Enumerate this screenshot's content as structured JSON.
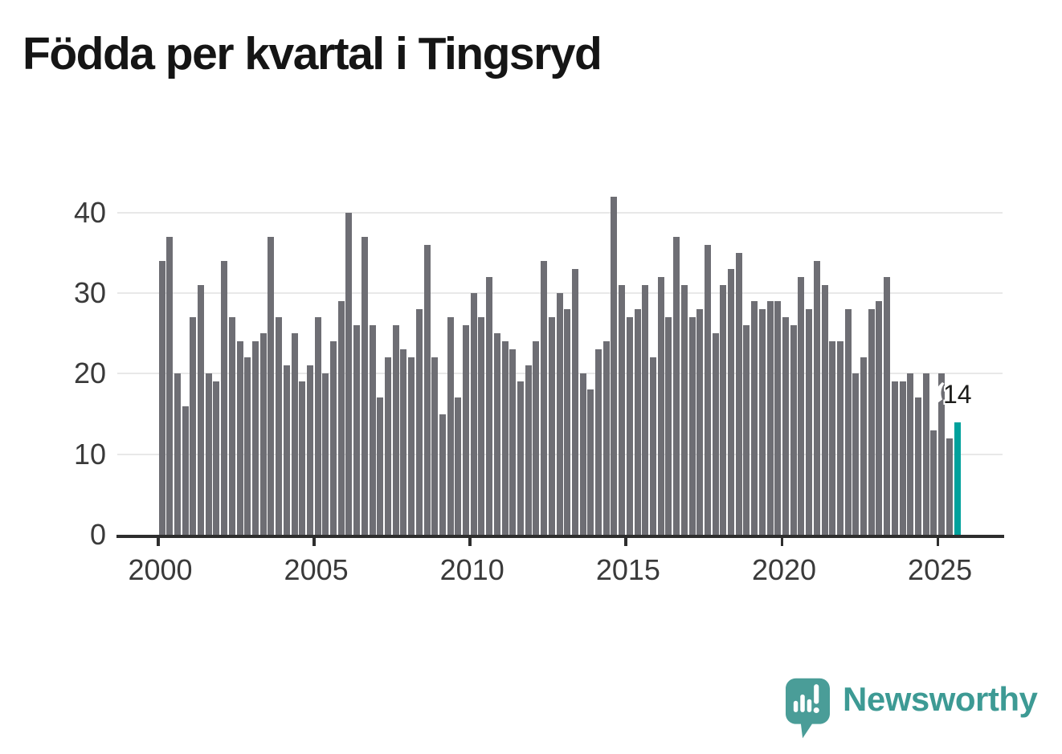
{
  "title": "Födda per kvartal i Tingsryd",
  "annotation": {
    "value_label": "14"
  },
  "branding": {
    "name": "Newsworthy",
    "icon": "speech-bubble-bar-chart-icon"
  },
  "colors": {
    "background": "#ffffff",
    "bar": "#6e6e74",
    "bar_highlight": "#00a19c",
    "axis": "#2e2e2e",
    "gridline": "#e8e8e8",
    "title_text": "#151515",
    "axis_label": "#3a3a3a",
    "annotation_text": "#1d1d1b",
    "brand_teal": "#3d9a94",
    "brand_bubble": "#4a9d98"
  },
  "chart_data": {
    "type": "bar",
    "title": "Födda per kvartal i Tingsryd",
    "categories": [
      "2000 Q1",
      "2000 Q2",
      "2000 Q3",
      "2000 Q4",
      "2001 Q1",
      "2001 Q2",
      "2001 Q3",
      "2001 Q4",
      "2002 Q1",
      "2002 Q2",
      "2002 Q3",
      "2002 Q4",
      "2003 Q1",
      "2003 Q2",
      "2003 Q3",
      "2003 Q4",
      "2004 Q1",
      "2004 Q2",
      "2004 Q3",
      "2004 Q4",
      "2005 Q1",
      "2005 Q2",
      "2005 Q3",
      "2005 Q4",
      "2006 Q1",
      "2006 Q2",
      "2006 Q3",
      "2006 Q4",
      "2007 Q1",
      "2007 Q2",
      "2007 Q3",
      "2007 Q4",
      "2008 Q1",
      "2008 Q2",
      "2008 Q3",
      "2008 Q4",
      "2009 Q1",
      "2009 Q2",
      "2009 Q3",
      "2009 Q4",
      "2010 Q1",
      "2010 Q2",
      "2010 Q3",
      "2010 Q4",
      "2011 Q1",
      "2011 Q2",
      "2011 Q3",
      "2011 Q4",
      "2012 Q1",
      "2012 Q2",
      "2012 Q3",
      "2012 Q4",
      "2013 Q1",
      "2013 Q2",
      "2013 Q3",
      "2013 Q4",
      "2014 Q1",
      "2014 Q2",
      "2014 Q3",
      "2014 Q4",
      "2015 Q1",
      "2015 Q2",
      "2015 Q3",
      "2015 Q4",
      "2016 Q1",
      "2016 Q2",
      "2016 Q3",
      "2016 Q4",
      "2017 Q1",
      "2017 Q2",
      "2017 Q3",
      "2017 Q4",
      "2018 Q1",
      "2018 Q2",
      "2018 Q3",
      "2018 Q4",
      "2019 Q1",
      "2019 Q2",
      "2019 Q3",
      "2019 Q4",
      "2020 Q1",
      "2020 Q2",
      "2020 Q3",
      "2020 Q4",
      "2021 Q1",
      "2021 Q2",
      "2021 Q3",
      "2021 Q4",
      "2022 Q1",
      "2022 Q2",
      "2022 Q3",
      "2022 Q4",
      "2023 Q1",
      "2023 Q2",
      "2023 Q3",
      "2023 Q4",
      "2024 Q1",
      "2024 Q2",
      "2024 Q3",
      "2024 Q4",
      "2025 Q1",
      "2025 Q2",
      "2025 Q3"
    ],
    "values": [
      34,
      37,
      20,
      16,
      27,
      31,
      20,
      19,
      34,
      27,
      24,
      22,
      24,
      25,
      37,
      27,
      21,
      25,
      19,
      21,
      27,
      20,
      24,
      29,
      40,
      26,
      37,
      26,
      17,
      22,
      26,
      23,
      22,
      28,
      36,
      22,
      15,
      27,
      17,
      26,
      30,
      27,
      32,
      25,
      24,
      23,
      19,
      21,
      24,
      34,
      27,
      30,
      28,
      33,
      20,
      18,
      23,
      24,
      42,
      31,
      27,
      28,
      31,
      22,
      32,
      27,
      37,
      31,
      27,
      28,
      36,
      25,
      31,
      33,
      35,
      26,
      29,
      28,
      29,
      29,
      27,
      26,
      32,
      28,
      34,
      31,
      24,
      24,
      28,
      20,
      22,
      28,
      29,
      32,
      19,
      19,
      20,
      17,
      20,
      13,
      20,
      12,
      14
    ],
    "highlight_index": 102,
    "highlight_category": "2025 Q3",
    "highlight_label": "14",
    "xlabel": "",
    "ylabel": "",
    "y_ticks": [
      0,
      10,
      20,
      30,
      40
    ],
    "x_tick_years": [
      2000,
      2005,
      2010,
      2015,
      2020,
      2025
    ],
    "ylim": [
      0,
      43
    ],
    "grid": "horizontal",
    "legend": "none"
  }
}
